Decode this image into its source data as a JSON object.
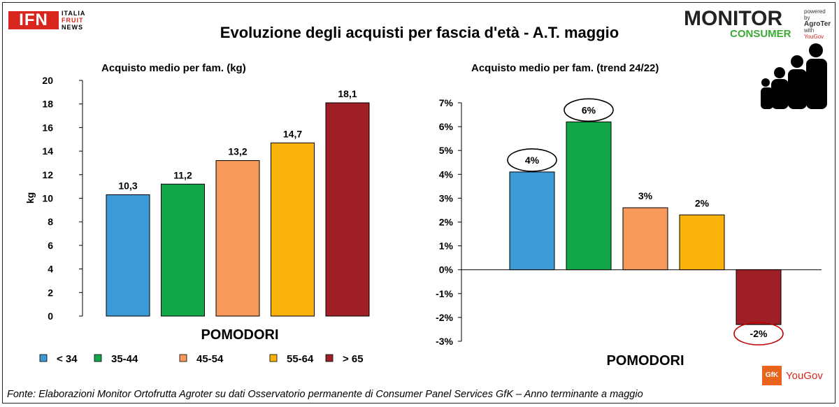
{
  "title": "Evoluzione degli acquisti per fascia d'età - A.T. maggio",
  "source_note": "Fonte: Elaborazioni Monitor Ortofrutta Agroter su dati Osservatorio permanente di Consumer Panel Services GfK – Anno terminante a maggio",
  "logos": {
    "ifn": {
      "mark": "IFN",
      "line1": "ITALIA",
      "line2": "FRUIT",
      "line3": "NEWS"
    },
    "monitor": {
      "word": "MONITOR",
      "sub": "CONSUMER",
      "side1": "powered by",
      "side2": "AgroTer",
      "side3": "with",
      "side4": "YouGov"
    },
    "gfk": {
      "mark": "GfK",
      "partner": "YouGov"
    },
    "family_icon": "family-silhouette-icon"
  },
  "colors": {
    "<34": "#3c9ad6",
    "35-44": "#12a84a",
    "45-54": "#f7995a",
    "55-64": "#f9b20a",
    ">65": "#9e1f25"
  },
  "legend": [
    "< 34",
    "35-44",
    "45-54",
    "55-64",
    "> 65"
  ],
  "chart_data": [
    {
      "type": "bar",
      "title": "Acquisto  medio per fam. (kg)",
      "xlabel": "POMODORI",
      "ylabel": "kg",
      "categories": [
        "< 34",
        "35-44",
        "45-54",
        "55-64",
        "> 65"
      ],
      "values": [
        10.3,
        11.2,
        13.2,
        14.7,
        18.1
      ],
      "data_labels": [
        "10,3",
        "11,2",
        "13,2",
        "14,7",
        "18,1"
      ],
      "ylim": [
        0,
        20
      ],
      "yticks": [
        "0",
        "2",
        "4",
        "6",
        "8",
        "10",
        "12",
        "14",
        "16",
        "18",
        "20"
      ],
      "grid": false,
      "legend_position": "bottom"
    },
    {
      "type": "bar",
      "title": "Acquisto  medio per fam. (trend 24/22)",
      "xlabel": "POMODORI",
      "ylabel": "",
      "categories": [
        "< 34",
        "35-44",
        "45-54",
        "55-64",
        "> 65"
      ],
      "values": [
        4.1,
        6.2,
        2.6,
        2.3,
        -2.3
      ],
      "data_labels": [
        "4%",
        "6%",
        "3%",
        "2%",
        "-2%"
      ],
      "ylim": [
        -3,
        7
      ],
      "yticks": [
        "-3%",
        "-2%",
        "-1%",
        "0%",
        "1%",
        "2%",
        "3%",
        "4%",
        "5%",
        "6%",
        "7%"
      ],
      "circled_labels": [
        "< 34",
        "35-44",
        "> 65"
      ],
      "grid": false
    }
  ]
}
